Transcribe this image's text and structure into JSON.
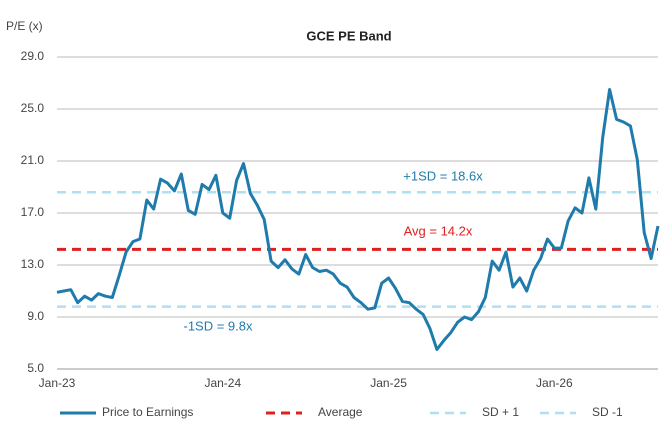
{
  "chart_data": {
    "type": "line",
    "title": "GCE PE Band",
    "y_label": "P/E (x)",
    "categories": [
      "Jan-23",
      null,
      null,
      null,
      null,
      null,
      null,
      null,
      null,
      null,
      null,
      null,
      null,
      null,
      null,
      null,
      null,
      null,
      null,
      null,
      null,
      null,
      null,
      null,
      "Jan-24",
      null,
      null,
      null,
      null,
      null,
      null,
      null,
      null,
      null,
      null,
      null,
      null,
      null,
      null,
      null,
      null,
      null,
      null,
      null,
      null,
      null,
      null,
      null,
      "Jan-25",
      null,
      null,
      null,
      null,
      null,
      null,
      null,
      null,
      null,
      null,
      null,
      null,
      null,
      null,
      null,
      null,
      null,
      null,
      null,
      null,
      null,
      null,
      null,
      "Jan-26",
      null,
      null,
      null,
      null,
      null,
      null,
      null,
      null,
      null,
      null,
      null,
      null,
      null,
      null,
      null
    ],
    "series": [
      {
        "name": "Price to Earnings",
        "color": "#1f7bab",
        "values": [
          10.9,
          11.0,
          11.1,
          10.1,
          10.6,
          10.3,
          10.8,
          10.6,
          10.5,
          12.2,
          14.0,
          14.8,
          15.0,
          18.0,
          17.3,
          19.6,
          19.3,
          18.7,
          20.0,
          17.2,
          16.9,
          19.2,
          18.8,
          19.9,
          17.0,
          16.6,
          19.5,
          20.8,
          18.5,
          17.6,
          16.5,
          13.3,
          12.8,
          13.4,
          12.7,
          12.3,
          13.8,
          12.8,
          12.5,
          12.6,
          12.3,
          11.6,
          11.3,
          10.5,
          10.1,
          9.6,
          9.7,
          11.6,
          12.0,
          11.2,
          10.2,
          10.1,
          9.6,
          9.2,
          8.1,
          6.5,
          7.2,
          7.8,
          8.6,
          9.0,
          8.8,
          9.4,
          10.5,
          13.3,
          12.6,
          14.0,
          11.3,
          12.0,
          11.0,
          12.6,
          13.5,
          15.0,
          14.3,
          14.3,
          16.4,
          17.4,
          17.0,
          19.7,
          17.3,
          22.8,
          26.5,
          24.2,
          24.0,
          23.7,
          21.1,
          15.5,
          13.5,
          16.0
        ]
      }
    ],
    "reference_lines": [
      {
        "name": "Average",
        "value": 14.2,
        "color": "#e02020",
        "label": "Avg = 14.2x",
        "label_color": "#e02020"
      },
      {
        "name": "SD + 1",
        "value": 18.6,
        "color": "#aee0f2",
        "label": "+1SD = 18.6x",
        "label_color": "#1f7bab"
      },
      {
        "name": "SD -1",
        "value": 9.8,
        "color": "#aee0f2",
        "label": "-1SD = 9.8x",
        "label_color": "#1f7bab"
      }
    ],
    "ylim": [
      5,
      29
    ],
    "yticks": [
      {
        "value": 5,
        "label": "5.0"
      },
      {
        "value": 9,
        "label": "9.0"
      },
      {
        "value": 13,
        "label": "13.0"
      },
      {
        "value": 17,
        "label": "17.0"
      },
      {
        "value": 21,
        "label": "21.0"
      },
      {
        "value": 25,
        "label": "25.0"
      },
      {
        "value": 29,
        "label": "29.0"
      }
    ],
    "grid": true
  }
}
